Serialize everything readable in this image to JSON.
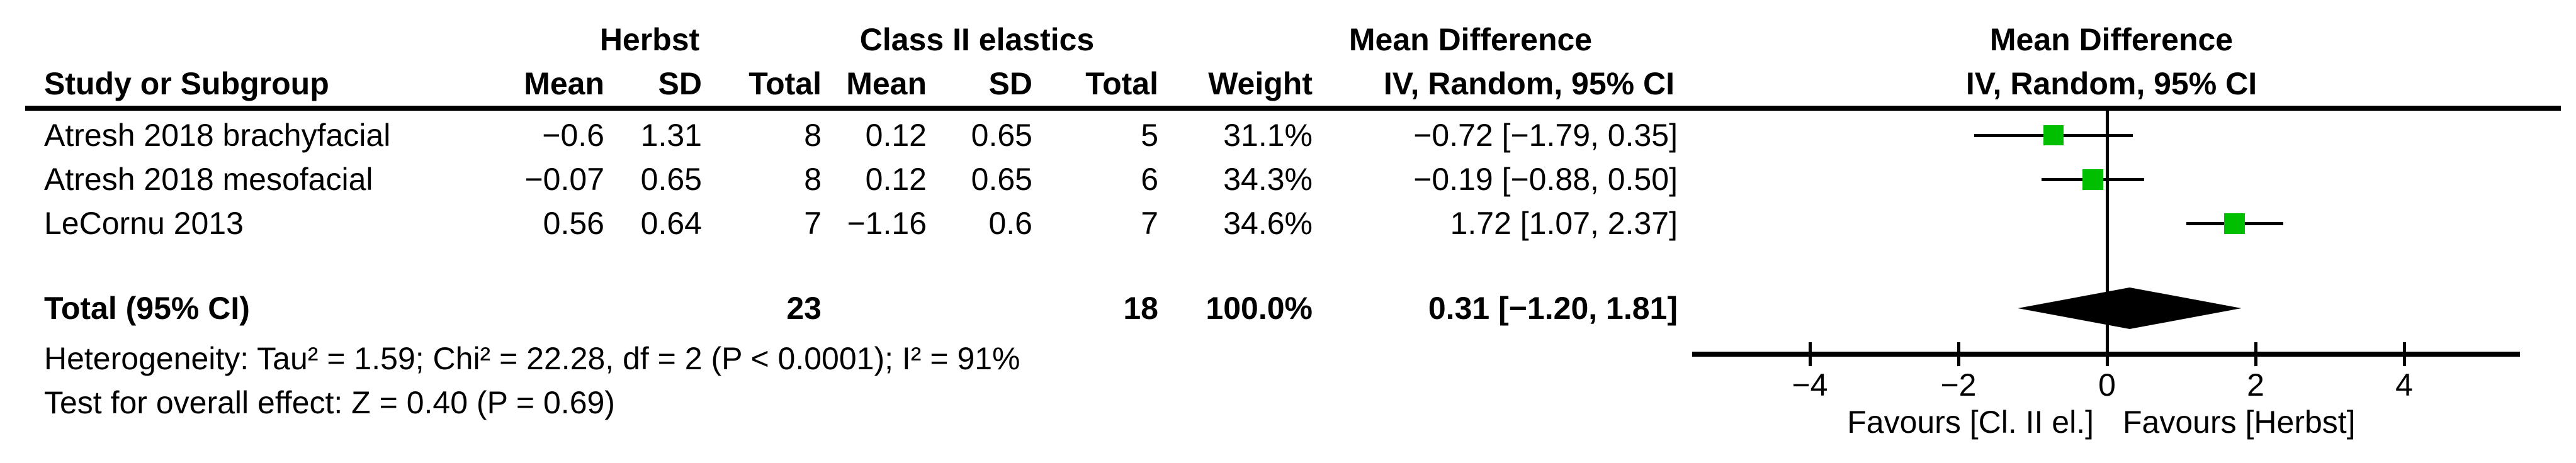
{
  "header": {
    "group_herbst": "Herbst",
    "group_class2": "Class II elastics",
    "group_md": "Mean Difference",
    "study_col": "Study or Subgroup",
    "mean1": "Mean",
    "sd1": "SD",
    "total1": "Total",
    "mean2": "Mean",
    "sd2": "SD",
    "total2": "Total",
    "weight": "Weight",
    "iv_random": "IV, Random, 95% CI",
    "plot_md": "Mean Difference",
    "plot_iv_random": "IV, Random, 95% CI"
  },
  "rows": [
    {
      "study": "Atresh 2018 brachyfacial",
      "h_mean": "−0.6",
      "h_sd": "1.31",
      "h_total": "8",
      "c_mean": "0.12",
      "c_sd": "0.65",
      "c_total": "5",
      "weight": "31.1%",
      "ci": "−0.72 [−1.79, 0.35]"
    },
    {
      "study": "Atresh 2018 mesofacial",
      "h_mean": "−0.07",
      "h_sd": "0.65",
      "h_total": "8",
      "c_mean": "0.12",
      "c_sd": "0.65",
      "c_total": "6",
      "weight": "34.3%",
      "ci": "−0.19 [−0.88, 0.50]"
    },
    {
      "study": "LeCornu 2013",
      "h_mean": "0.56",
      "h_sd": "0.64",
      "h_total": "7",
      "c_mean": "−1.16",
      "c_sd": "0.6",
      "c_total": "7",
      "weight": "34.6%",
      "ci": "1.72 [1.07, 2.37]"
    }
  ],
  "total_row": {
    "label": "Total (95% CI)",
    "h_total": "23",
    "c_total": "18",
    "weight": "100.0%",
    "ci": "0.31 [−1.20, 1.81]"
  },
  "footnotes": {
    "heterogeneity": "Heterogeneity: Tau² = 1.59; Chi² = 22.28, df = 2 (P < 0.0001); I² = 91%",
    "overall_effect": "Test for overall effect: Z = 0.40 (P = 0.69)"
  },
  "axis": {
    "tick_labels": [
      "−4",
      "−2",
      "0",
      "2",
      "4"
    ],
    "favours_left": "Favours [Cl. II el.]",
    "favours_right": "Favours [Herbst]"
  },
  "colors": {
    "marker_green": "#00be00",
    "line_black": "#000000"
  },
  "chart_data": {
    "type": "forest",
    "effect_measure": "Mean Difference, IV, Random, 95% CI",
    "studies": [
      {
        "name": "Atresh 2018 brachyfacial",
        "md": -0.72,
        "ci_low": -1.79,
        "ci_high": 0.35,
        "weight_pct": 31.1
      },
      {
        "name": "Atresh 2018 mesofacial",
        "md": -0.19,
        "ci_low": -0.88,
        "ci_high": 0.5,
        "weight_pct": 34.3
      },
      {
        "name": "LeCornu 2013",
        "md": 1.72,
        "ci_low": 1.07,
        "ci_high": 2.37,
        "weight_pct": 34.6
      }
    ],
    "total": {
      "md": 0.31,
      "ci_low": -1.2,
      "ci_high": 1.81,
      "weight_pct": 100.0
    },
    "heterogeneity": {
      "tau2": 1.59,
      "chi2": 22.28,
      "df": 2,
      "p": "< 0.0001",
      "i2_pct": 91
    },
    "overall_effect": {
      "z": 0.4,
      "p": 0.69
    },
    "x_ticks": [
      -4,
      -2,
      0,
      2,
      4
    ],
    "xlim": [
      -5.6,
      5.6
    ],
    "grid": false,
    "marker": "square",
    "marker_color": "#00be00"
  }
}
